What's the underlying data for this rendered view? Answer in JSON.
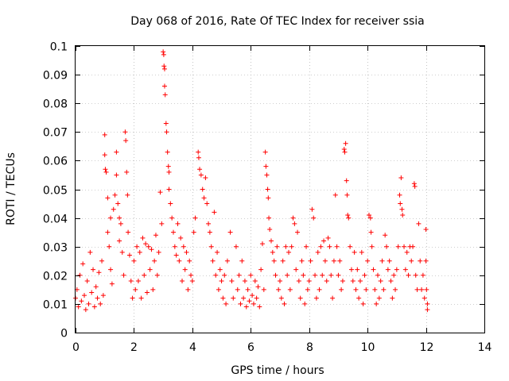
{
  "chart_data": {
    "type": "scatter",
    "title": "Day 068 of 2016, Rate Of TEC Index for receiver ssia",
    "xlabel": "GPS time / hours",
    "ylabel": "ROTI / TECUs",
    "xlim": [
      0,
      14
    ],
    "ylim": [
      0,
      0.1
    ],
    "x_ticks": [
      0,
      2,
      4,
      6,
      8,
      10,
      12,
      14
    ],
    "x_tick_labels": [
      "0",
      "2",
      "4",
      "6",
      "8",
      "10",
      "12",
      "14"
    ],
    "y_ticks": [
      0,
      0.01,
      0.02,
      0.03,
      0.04,
      0.05,
      0.06,
      0.07,
      0.08,
      0.09,
      0.1
    ],
    "y_tick_labels": [
      "0",
      "0.01",
      "0.02",
      "0.03",
      "0.04",
      "0.05",
      "0.06",
      "0.07",
      "0.08",
      "0.09",
      "0.1"
    ],
    "grid": true,
    "marker": "+",
    "series": [
      {
        "name": "ROTI",
        "color": "#ff0000",
        "points": [
          [
            0.0,
            0.012
          ],
          [
            0.05,
            0.015
          ],
          [
            0.1,
            0.009
          ],
          [
            0.15,
            0.02
          ],
          [
            0.2,
            0.011
          ],
          [
            0.25,
            0.024
          ],
          [
            0.3,
            0.013
          ],
          [
            0.35,
            0.008
          ],
          [
            0.4,
            0.018
          ],
          [
            0.45,
            0.01
          ],
          [
            0.5,
            0.028
          ],
          [
            0.55,
            0.014
          ],
          [
            0.6,
            0.022
          ],
          [
            0.65,
            0.009
          ],
          [
            0.7,
            0.016
          ],
          [
            0.75,
            0.012
          ],
          [
            0.8,
            0.021
          ],
          [
            0.85,
            0.01
          ],
          [
            0.9,
            0.025
          ],
          [
            0.95,
            0.013
          ],
          [
            1.0,
            0.069
          ],
          [
            1.0,
            0.062
          ],
          [
            1.02,
            0.057
          ],
          [
            1.05,
            0.056
          ],
          [
            1.1,
            0.047
          ],
          [
            1.1,
            0.035
          ],
          [
            1.15,
            0.03
          ],
          [
            1.2,
            0.04
          ],
          [
            1.2,
            0.022
          ],
          [
            1.25,
            0.017
          ],
          [
            1.3,
            0.043
          ],
          [
            1.35,
            0.048
          ],
          [
            1.4,
            0.063
          ],
          [
            1.4,
            0.055
          ],
          [
            1.45,
            0.045
          ],
          [
            1.5,
            0.04
          ],
          [
            1.5,
            0.032
          ],
          [
            1.55,
            0.038
          ],
          [
            1.6,
            0.028
          ],
          [
            1.65,
            0.02
          ],
          [
            1.7,
            0.07
          ],
          [
            1.72,
            0.067
          ],
          [
            1.75,
            0.056
          ],
          [
            1.78,
            0.048
          ],
          [
            1.8,
            0.035
          ],
          [
            1.85,
            0.027
          ],
          [
            1.9,
            0.018
          ],
          [
            1.95,
            0.012
          ],
          [
            2.0,
            0.025
          ],
          [
            2.05,
            0.015
          ],
          [
            2.1,
            0.03
          ],
          [
            2.15,
            0.018
          ],
          [
            2.2,
            0.028
          ],
          [
            2.25,
            0.012
          ],
          [
            2.3,
            0.033
          ],
          [
            2.35,
            0.02
          ],
          [
            2.4,
            0.031
          ],
          [
            2.45,
            0.014
          ],
          [
            2.5,
            0.03
          ],
          [
            2.55,
            0.022
          ],
          [
            2.6,
            0.029
          ],
          [
            2.65,
            0.015
          ],
          [
            2.7,
            0.025
          ],
          [
            2.75,
            0.034
          ],
          [
            2.8,
            0.02
          ],
          [
            2.85,
            0.028
          ],
          [
            2.9,
            0.049
          ],
          [
            2.95,
            0.038
          ],
          [
            3.0,
            0.098
          ],
          [
            3.02,
            0.097
          ],
          [
            3.03,
            0.093
          ],
          [
            3.05,
            0.092
          ],
          [
            3.05,
            0.086
          ],
          [
            3.07,
            0.083
          ],
          [
            3.1,
            0.073
          ],
          [
            3.12,
            0.07
          ],
          [
            3.15,
            0.063
          ],
          [
            3.18,
            0.058
          ],
          [
            3.2,
            0.056
          ],
          [
            3.2,
            0.05
          ],
          [
            3.25,
            0.045
          ],
          [
            3.3,
            0.04
          ],
          [
            3.35,
            0.035
          ],
          [
            3.4,
            0.03
          ],
          [
            3.45,
            0.027
          ],
          [
            3.5,
            0.038
          ],
          [
            3.55,
            0.025
          ],
          [
            3.6,
            0.033
          ],
          [
            3.65,
            0.018
          ],
          [
            3.7,
            0.03
          ],
          [
            3.75,
            0.022
          ],
          [
            3.8,
            0.028
          ],
          [
            3.85,
            0.015
          ],
          [
            3.9,
            0.025
          ],
          [
            3.95,
            0.02
          ],
          [
            4.0,
            0.018
          ],
          [
            4.05,
            0.035
          ],
          [
            4.1,
            0.04
          ],
          [
            4.2,
            0.063
          ],
          [
            4.22,
            0.061
          ],
          [
            4.25,
            0.057
          ],
          [
            4.3,
            0.055
          ],
          [
            4.35,
            0.05
          ],
          [
            4.4,
            0.047
          ],
          [
            4.45,
            0.054
          ],
          [
            4.5,
            0.045
          ],
          [
            4.55,
            0.038
          ],
          [
            4.6,
            0.035
          ],
          [
            4.65,
            0.03
          ],
          [
            4.7,
            0.025
          ],
          [
            4.75,
            0.042
          ],
          [
            4.8,
            0.02
          ],
          [
            4.85,
            0.028
          ],
          [
            4.9,
            0.015
          ],
          [
            4.95,
            0.022
          ],
          [
            5.0,
            0.018
          ],
          [
            5.05,
            0.012
          ],
          [
            5.1,
            0.02
          ],
          [
            5.15,
            0.01
          ],
          [
            5.2,
            0.025
          ],
          [
            5.3,
            0.035
          ],
          [
            5.35,
            0.018
          ],
          [
            5.4,
            0.012
          ],
          [
            5.5,
            0.03
          ],
          [
            5.55,
            0.015
          ],
          [
            5.6,
            0.02
          ],
          [
            5.65,
            0.01
          ],
          [
            5.7,
            0.025
          ],
          [
            5.75,
            0.012
          ],
          [
            5.8,
            0.018
          ],
          [
            5.85,
            0.009
          ],
          [
            5.9,
            0.015
          ],
          [
            5.95,
            0.011
          ],
          [
            6.0,
            0.02
          ],
          [
            6.05,
            0.013
          ],
          [
            6.1,
            0.01
          ],
          [
            6.15,
            0.018
          ],
          [
            6.2,
            0.012
          ],
          [
            6.25,
            0.016
          ],
          [
            6.3,
            0.009
          ],
          [
            6.35,
            0.022
          ],
          [
            6.4,
            0.031
          ],
          [
            6.45,
            0.015
          ],
          [
            6.5,
            0.063
          ],
          [
            6.52,
            0.058
          ],
          [
            6.55,
            0.055
          ],
          [
            6.58,
            0.05
          ],
          [
            6.6,
            0.047
          ],
          [
            6.62,
            0.04
          ],
          [
            6.65,
            0.036
          ],
          [
            6.7,
            0.032
          ],
          [
            6.75,
            0.028
          ],
          [
            6.8,
            0.025
          ],
          [
            6.85,
            0.02
          ],
          [
            6.9,
            0.03
          ],
          [
            6.95,
            0.015
          ],
          [
            7.0,
            0.018
          ],
          [
            7.05,
            0.012
          ],
          [
            7.1,
            0.025
          ],
          [
            7.15,
            0.01
          ],
          [
            7.2,
            0.03
          ],
          [
            7.25,
            0.02
          ],
          [
            7.3,
            0.028
          ],
          [
            7.35,
            0.015
          ],
          [
            7.4,
            0.03
          ],
          [
            7.45,
            0.04
          ],
          [
            7.5,
            0.038
          ],
          [
            7.55,
            0.022
          ],
          [
            7.6,
            0.035
          ],
          [
            7.65,
            0.018
          ],
          [
            7.7,
            0.012
          ],
          [
            7.75,
            0.025
          ],
          [
            7.8,
            0.02
          ],
          [
            7.85,
            0.01
          ],
          [
            7.9,
            0.03
          ],
          [
            7.95,
            0.015
          ],
          [
            8.0,
            0.018
          ],
          [
            8.05,
            0.025
          ],
          [
            8.1,
            0.043
          ],
          [
            8.15,
            0.04
          ],
          [
            8.2,
            0.02
          ],
          [
            8.25,
            0.012
          ],
          [
            8.3,
            0.028
          ],
          [
            8.35,
            0.015
          ],
          [
            8.4,
            0.03
          ],
          [
            8.45,
            0.02
          ],
          [
            8.5,
            0.032
          ],
          [
            8.55,
            0.025
          ],
          [
            8.6,
            0.018
          ],
          [
            8.65,
            0.033
          ],
          [
            8.7,
            0.03
          ],
          [
            8.75,
            0.02
          ],
          [
            8.8,
            0.012
          ],
          [
            8.85,
            0.025
          ],
          [
            8.9,
            0.048
          ],
          [
            8.95,
            0.03
          ],
          [
            9.0,
            0.02
          ],
          [
            9.05,
            0.025
          ],
          [
            9.1,
            0.015
          ],
          [
            9.15,
            0.018
          ],
          [
            9.2,
            0.064
          ],
          [
            9.22,
            0.063
          ],
          [
            9.25,
            0.066
          ],
          [
            9.28,
            0.053
          ],
          [
            9.3,
            0.048
          ],
          [
            9.32,
            0.041
          ],
          [
            9.35,
            0.04
          ],
          [
            9.4,
            0.03
          ],
          [
            9.45,
            0.022
          ],
          [
            9.5,
            0.018
          ],
          [
            9.55,
            0.028
          ],
          [
            9.6,
            0.015
          ],
          [
            9.65,
            0.022
          ],
          [
            9.7,
            0.012
          ],
          [
            9.75,
            0.018
          ],
          [
            9.8,
            0.028
          ],
          [
            9.85,
            0.01
          ],
          [
            9.9,
            0.02
          ],
          [
            9.95,
            0.015
          ],
          [
            10.0,
            0.025
          ],
          [
            10.05,
            0.041
          ],
          [
            10.1,
            0.04
          ],
          [
            10.12,
            0.035
          ],
          [
            10.15,
            0.03
          ],
          [
            10.2,
            0.022
          ],
          [
            10.25,
            0.015
          ],
          [
            10.3,
            0.01
          ],
          [
            10.35,
            0.02
          ],
          [
            10.4,
            0.012
          ],
          [
            10.45,
            0.018
          ],
          [
            10.5,
            0.025
          ],
          [
            10.55,
            0.015
          ],
          [
            10.6,
            0.034
          ],
          [
            10.65,
            0.03
          ],
          [
            10.7,
            0.022
          ],
          [
            10.75,
            0.025
          ],
          [
            10.8,
            0.018
          ],
          [
            10.85,
            0.012
          ],
          [
            10.9,
            0.02
          ],
          [
            10.95,
            0.015
          ],
          [
            11.0,
            0.022
          ],
          [
            11.05,
            0.03
          ],
          [
            11.1,
            0.048
          ],
          [
            11.12,
            0.045
          ],
          [
            11.15,
            0.054
          ],
          [
            11.18,
            0.043
          ],
          [
            11.2,
            0.041
          ],
          [
            11.25,
            0.03
          ],
          [
            11.3,
            0.022
          ],
          [
            11.35,
            0.028
          ],
          [
            11.4,
            0.02
          ],
          [
            11.45,
            0.03
          ],
          [
            11.5,
            0.025
          ],
          [
            11.55,
            0.03
          ],
          [
            11.6,
            0.052
          ],
          [
            11.62,
            0.051
          ],
          [
            11.65,
            0.02
          ],
          [
            11.7,
            0.015
          ],
          [
            11.75,
            0.038
          ],
          [
            11.8,
            0.025
          ],
          [
            11.85,
            0.015
          ],
          [
            11.9,
            0.02
          ],
          [
            11.95,
            0.012
          ],
          [
            12.0,
            0.036
          ],
          [
            12.0,
            0.025
          ],
          [
            12.02,
            0.015
          ],
          [
            12.05,
            0.01
          ],
          [
            12.05,
            0.008
          ]
        ]
      }
    ]
  }
}
